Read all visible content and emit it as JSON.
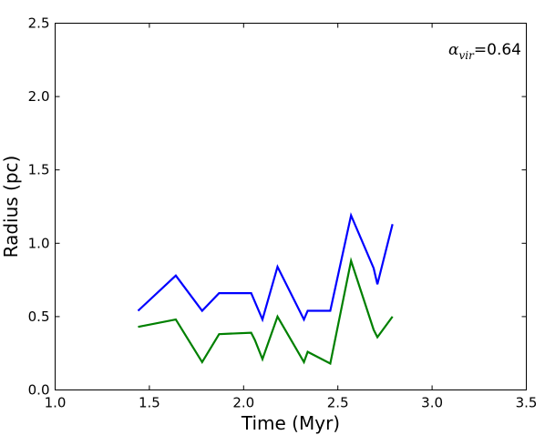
{
  "chart_data": {
    "type": "line",
    "title": "",
    "xlabel": "Time (Myr)",
    "ylabel": "Radius (pc)",
    "xlim": [
      1.0,
      3.5
    ],
    "ylim": [
      0.0,
      2.5
    ],
    "xticks": [
      "1.0",
      "1.5",
      "2.0",
      "2.5",
      "3.0",
      "3.5"
    ],
    "yticks": [
      "0.0",
      "0.5",
      "1.0",
      "1.5",
      "2.0",
      "2.5"
    ],
    "grid": false,
    "annotation": {
      "symbol": "α",
      "subscript": "vir",
      "text": "=0.64"
    },
    "series": [
      {
        "color": "#0000ff",
        "x": [
          1.44,
          1.64,
          1.78,
          1.87,
          2.04,
          2.1,
          2.18,
          2.32,
          2.34,
          2.46,
          2.57,
          2.69,
          2.71,
          2.79
        ],
        "y": [
          0.54,
          0.78,
          0.54,
          0.66,
          0.66,
          0.48,
          0.84,
          0.48,
          0.54,
          0.54,
          1.19,
          0.83,
          0.72,
          1.13
        ]
      },
      {
        "color": "#008000",
        "x": [
          1.44,
          1.64,
          1.78,
          1.87,
          2.04,
          2.06,
          2.1,
          2.18,
          2.32,
          2.34,
          2.46,
          2.57,
          2.69,
          2.71,
          2.79
        ],
        "y": [
          0.43,
          0.48,
          0.19,
          0.38,
          0.39,
          0.34,
          0.21,
          0.5,
          0.19,
          0.26,
          0.18,
          0.88,
          0.41,
          0.36,
          0.5
        ]
      }
    ]
  }
}
